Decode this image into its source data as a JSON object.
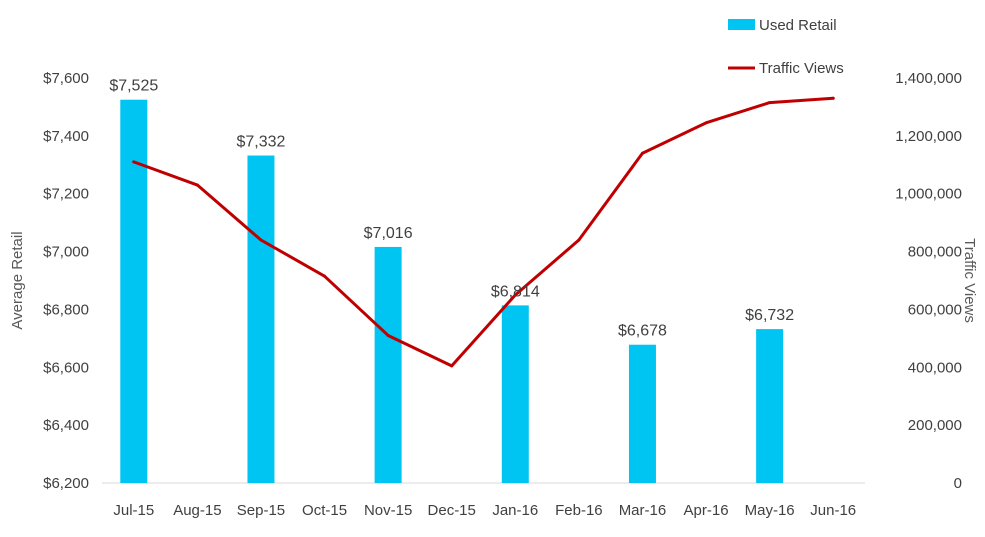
{
  "chart_data": {
    "type": "bar",
    "categories": [
      "Jul-15",
      "Aug-15",
      "Sep-15",
      "Oct-15",
      "Nov-15",
      "Dec-15",
      "Jan-16",
      "Feb-16",
      "Mar-16",
      "Apr-16",
      "May-16",
      "Jun-16"
    ],
    "series": [
      {
        "name": "Used Retail",
        "type": "bar",
        "axis": "left",
        "color": "#00C5F2",
        "values": [
          7525,
          null,
          7332,
          null,
          7016,
          null,
          6814,
          null,
          6678,
          null,
          6732,
          null
        ],
        "data_labels": [
          "$7,525",
          "",
          "$7,332",
          "",
          "$7,016",
          "",
          "$6,814",
          "",
          "$6,678",
          "",
          "$6,732",
          ""
        ]
      },
      {
        "name": "Traffic Views",
        "type": "line",
        "axis": "right",
        "color": "#C00000",
        "values": [
          1110000,
          1030000,
          840000,
          715000,
          510000,
          405000,
          650000,
          840000,
          1140000,
          1245000,
          1315000,
          1330000
        ]
      }
    ],
    "ylabel": "Average Retail",
    "y2label": "Traffic Views",
    "ylim": [
      6200,
      7600
    ],
    "y2lim": [
      0,
      1400000
    ],
    "yticks": [
      "$6,200",
      "$6,400",
      "$6,600",
      "$6,800",
      "$7,000",
      "$7,200",
      "$7,400",
      "$7,600"
    ],
    "y2ticks": [
      "0",
      "200,000",
      "400,000",
      "600,000",
      "800,000",
      "1,000,000",
      "1,200,000",
      "1,400,000"
    ],
    "grid": false,
    "legend_position": "top-right"
  }
}
